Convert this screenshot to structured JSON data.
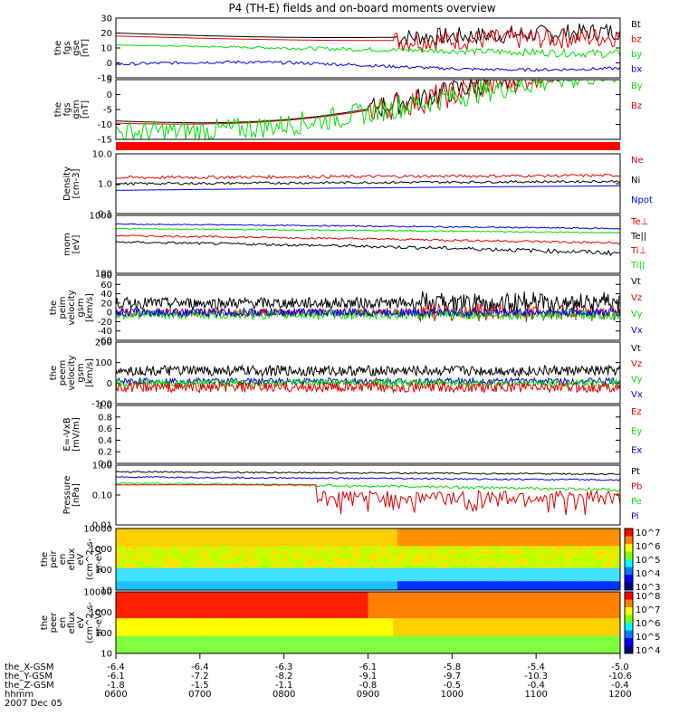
{
  "title": "P4 (TH-E) fields and on-board moments overview",
  "colors": {
    "black": "#000000",
    "red": "#e00000",
    "green": "#00e000",
    "blue": "#0000e0"
  },
  "chart_data": [
    {
      "type": "line",
      "ylabel": [
        "the",
        "fgs",
        "gse",
        "[nT]"
      ],
      "yticks": [
        "30",
        "20",
        "10",
        "0",
        "-10"
      ],
      "ylim": [
        -10,
        30
      ],
      "legend": [
        {
          "name": "Bt",
          "color": "black"
        },
        {
          "name": "bz",
          "color": "red"
        },
        {
          "name": "by",
          "color": "green"
        },
        {
          "name": "bx",
          "color": "blue"
        }
      ]
    },
    {
      "type": "line",
      "ylabel": [
        "the",
        "fgs",
        "gsm",
        "[nT]"
      ],
      "yticks": [
        "5",
        "0",
        "-5",
        "-10",
        "-15"
      ],
      "ylim": [
        -18,
        8
      ],
      "legend": [
        {
          "name": "By",
          "color": "green"
        },
        {
          "name": "Bz",
          "color": "red"
        }
      ]
    },
    {
      "type": "line",
      "ylabel": [
        "Density",
        "[cm-3]"
      ],
      "yticks": [
        "10.0",
        "1.0",
        "0.1"
      ],
      "ylim": [
        0.1,
        10
      ],
      "legend": [
        {
          "name": "Ne",
          "color": "red"
        },
        {
          "name": "Ni",
          "color": "black"
        },
        {
          "name": "Npot",
          "color": "blue"
        }
      ]
    },
    {
      "type": "line",
      "ylabel": [
        "mom",
        "[eV]"
      ],
      "yticks": [
        "1000",
        "100"
      ],
      "ylim": [
        100,
        10000
      ],
      "legend": [
        {
          "name": "Te⊥",
          "color": "red"
        },
        {
          "name": "Te||",
          "color": "black"
        },
        {
          "name": "Ti⊥",
          "color": "red"
        },
        {
          "name": "Ti||",
          "color": "green"
        }
      ]
    },
    {
      "type": "line",
      "ylabel": [
        "the",
        "peim",
        "velocity",
        "gsm",
        "[km/s]"
      ],
      "yticks": [
        "80",
        "60",
        "40",
        "20",
        "0",
        "-20",
        "-40",
        "-60"
      ],
      "ylim": [
        -60,
        80
      ],
      "legend": [
        {
          "name": "Vt",
          "color": "black"
        },
        {
          "name": "Vz",
          "color": "red"
        },
        {
          "name": "Vy",
          "color": "green"
        },
        {
          "name": "Vx",
          "color": "blue"
        }
      ]
    },
    {
      "type": "line",
      "ylabel": [
        "the",
        "peem",
        "velocity",
        "gsm",
        "[km/s]"
      ],
      "yticks": [
        "200",
        "100",
        "0",
        "-100"
      ],
      "ylim": [
        -100,
        200
      ],
      "legend": [
        {
          "name": "Vt",
          "color": "black"
        },
        {
          "name": "Vz",
          "color": "red"
        },
        {
          "name": "Vy",
          "color": "green"
        },
        {
          "name": "Vx",
          "color": "blue"
        }
      ]
    },
    {
      "type": "line",
      "ylabel": [
        "E=-VxB",
        "[mV/m]"
      ],
      "yticks": [
        "1.0",
        "0.8",
        "0.6",
        "0.4",
        "0.2",
        "0.0"
      ],
      "ylim": [
        0,
        1
      ],
      "legend": [
        {
          "name": "Ez",
          "color": "red"
        },
        {
          "name": "Ey",
          "color": "green"
        },
        {
          "name": "Ex",
          "color": "blue"
        }
      ]
    },
    {
      "type": "line",
      "ylabel": [
        "Pressure",
        "[nPa]"
      ],
      "yticks": [
        "1.00",
        "0.10",
        "0.01"
      ],
      "ylim": [
        0.01,
        1
      ],
      "legend": [
        {
          "name": "Pt",
          "color": "black"
        },
        {
          "name": "Pb",
          "color": "red"
        },
        {
          "name": "Pe",
          "color": "green"
        },
        {
          "name": "Pi",
          "color": "blue"
        }
      ]
    },
    {
      "type": "heatmap",
      "ylabel": [
        "the",
        "peir",
        "en",
        "eflux",
        "eV",
        "(cm^2-s-",
        "sr-eV)"
      ],
      "yticks": [
        "10000",
        "1000",
        "100",
        "10"
      ],
      "colorbar": [
        "10^7",
        "10^6",
        "10^5",
        "10^4",
        "10^3"
      ]
    },
    {
      "type": "heatmap",
      "ylabel": [
        "the",
        "peer",
        "en",
        "eflux",
        "eV",
        "(cm^2-s-",
        "sr-eV)"
      ],
      "yticks": [
        "10000",
        "1000",
        "100",
        "10"
      ],
      "colorbar": [
        "10^8",
        "10^7",
        "10^6",
        "10^5",
        "10^4"
      ]
    }
  ],
  "xaxis": {
    "rows": [
      {
        "label": "the_X-GSM",
        "values": [
          "-6.4",
          "-6.4",
          "-6.3",
          "-6.1",
          "-5.8",
          "-5.4",
          "-5.0"
        ]
      },
      {
        "label": "the_Y-GSM",
        "values": [
          "-6.1",
          "-7.2",
          "-8.2",
          "-9.1",
          "-9.7",
          "-10.3",
          "-10.6"
        ]
      },
      {
        "label": "the_Z-GSM",
        "values": [
          "-1.8",
          "-1.5",
          "-1.1",
          "-0.8",
          "-0.5",
          "-0.4",
          "-0.4"
        ]
      },
      {
        "label": "hhmm",
        "values": [
          "0600",
          "0700",
          "0800",
          "0900",
          "1000",
          "1100",
          "1200"
        ]
      }
    ],
    "date": "2007 Dec 05"
  }
}
